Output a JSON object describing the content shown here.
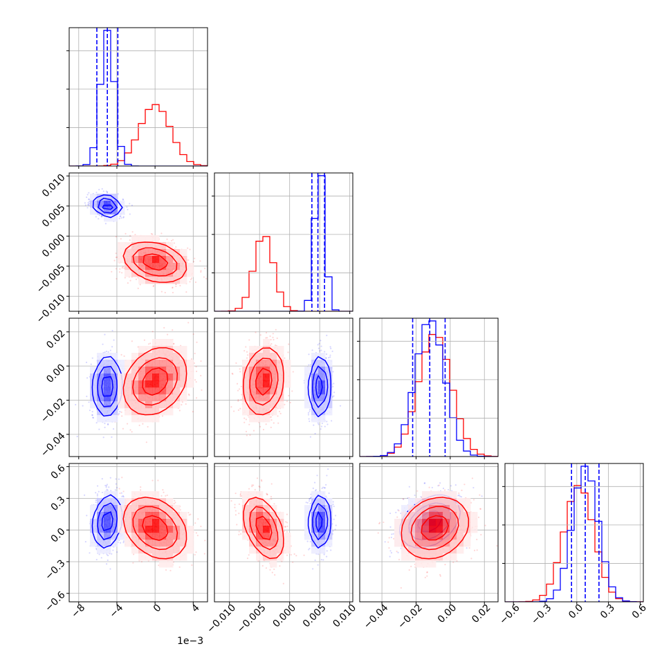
{
  "chart_data": {
    "type": "corner",
    "description": "Corner plot comparing two posterior sample sets (blue and red) over four parameters",
    "parameters": [
      {
        "id": "p0",
        "range": [
          -9.0,
          5.5
        ],
        "ticks": [
          -8,
          -4,
          0,
          4
        ],
        "tick_labels": [
          "−8",
          "−4",
          "0",
          "4"
        ],
        "offset_label": "1e−3"
      },
      {
        "id": "p1",
        "range": [
          -0.0125,
          0.0105
        ],
        "ticks": [
          -0.01,
          -0.005,
          0.0,
          0.005,
          0.01
        ],
        "tick_labels": [
          "−0.010",
          "−0.005",
          "0.000",
          "0.005",
          "0.010"
        ]
      },
      {
        "id": "p2",
        "range": [
          -0.053,
          0.028
        ],
        "ticks": [
          -0.04,
          -0.02,
          0.0,
          0.02
        ],
        "tick_labels": [
          "−0.04",
          "−0.02",
          "0.00",
          "0.02"
        ]
      },
      {
        "id": "p3",
        "range": [
          -0.68,
          0.63
        ],
        "ticks": [
          -0.6,
          -0.3,
          0.0,
          0.3,
          0.6
        ],
        "tick_labels": [
          "−0.6",
          "−0.3",
          "0.0",
          "0.3",
          "0.6"
        ]
      }
    ],
    "series": [
      {
        "name": "blue",
        "color": "#0000ff",
        "means": [
          -5.0,
          0.005,
          -0.012,
          0.08
        ],
        "sds": [
          0.7,
          0.0008,
          0.0085,
          0.12
        ],
        "correlations": {
          "1-0": -0.2,
          "2-0": 0.05,
          "3-0": 0.2,
          "2-1": 0.05,
          "3-1": 0.05,
          "3-2": 0.35
        },
        "quantiles": [
          [
            -6.1,
            -5.0,
            -3.9
          ],
          [
            0.0037,
            0.0047,
            0.0058
          ],
          [
            -0.022,
            -0.012,
            -0.003
          ],
          [
            -0.05,
            0.08,
            0.21
          ]
        ]
      },
      {
        "name": "red",
        "color": "#ff0000",
        "means": [
          0.0,
          -0.0043,
          -0.009,
          0.02
        ],
        "sds": [
          1.6,
          0.0016,
          0.0095,
          0.14
        ],
        "correlations": {
          "1-0": -0.3,
          "2-0": 0.25,
          "3-0": -0.3,
          "2-1": 0.15,
          "3-1": -0.45,
          "3-2": 0.2
        }
      }
    ]
  }
}
